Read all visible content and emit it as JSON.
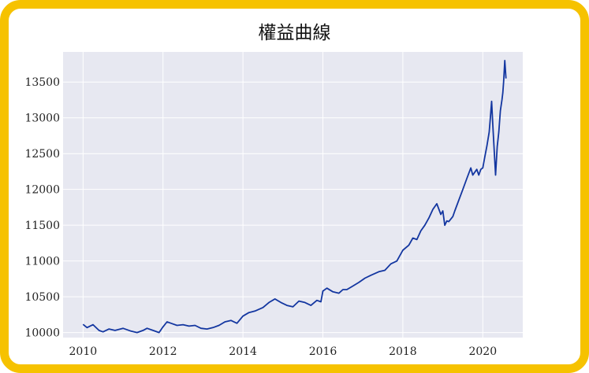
{
  "colors": {
    "frame": "#f6c200",
    "plot_bg": "#e7e8f1",
    "grid": "#ffffff",
    "line": "#1336a0"
  },
  "chart_data": {
    "type": "line",
    "title": "權益曲線",
    "xlabel": "",
    "ylabel": "",
    "xlim": [
      2009.5,
      2021.0
    ],
    "ylim": [
      9930,
      13920
    ],
    "xticks": [
      2010,
      2012,
      2014,
      2016,
      2018,
      2020
    ],
    "yticks": [
      10000,
      10500,
      11000,
      11500,
      12000,
      12500,
      13000,
      13500
    ],
    "grid": true,
    "legend": "none",
    "series": [
      {
        "x": [
          2010.0,
          2010.1,
          2010.25,
          2010.4,
          2010.5,
          2010.65,
          2010.8,
          2011.0,
          2011.2,
          2011.35,
          2011.5,
          2011.6,
          2011.75,
          2011.9,
          2012.0,
          2012.1,
          2012.2,
          2012.35,
          2012.5,
          2012.65,
          2012.8,
          2012.95,
          2013.1,
          2013.25,
          2013.4,
          2013.55,
          2013.7,
          2013.85,
          2014.0,
          2014.15,
          2014.3,
          2014.5,
          2014.65,
          2014.8,
          2014.95,
          2015.1,
          2015.25,
          2015.4,
          2015.55,
          2015.7,
          2015.85,
          2015.95,
          2016.0,
          2016.1,
          2016.25,
          2016.4,
          2016.5,
          2016.6,
          2016.75,
          2016.9,
          2017.05,
          2017.2,
          2017.4,
          2017.55,
          2017.7,
          2017.85,
          2018.0,
          2018.15,
          2018.25,
          2018.35,
          2018.45,
          2018.55,
          2018.65,
          2018.75,
          2018.85,
          2018.95,
          2019.0,
          2019.05,
          2019.1,
          2019.15,
          2019.25,
          2019.3,
          2019.4,
          2019.5,
          2019.6,
          2019.7,
          2019.75,
          2019.85,
          2019.9,
          2019.95,
          2020.0,
          2020.05,
          2020.1,
          2020.13,
          2020.16,
          2020.19,
          2020.22,
          2020.25,
          2020.28,
          2020.32,
          2020.36,
          2020.4,
          2020.44,
          2020.48,
          2020.5,
          2020.52,
          2020.55,
          2020.58
        ],
        "y": [
          10115,
          10070,
          10110,
          10030,
          10010,
          10050,
          10030,
          10060,
          10020,
          10000,
          10030,
          10060,
          10030,
          10000,
          10080,
          10150,
          10130,
          10100,
          10110,
          10090,
          10100,
          10060,
          10050,
          10070,
          10100,
          10150,
          10170,
          10130,
          10230,
          10280,
          10300,
          10350,
          10420,
          10470,
          10420,
          10380,
          10360,
          10440,
          10420,
          10380,
          10450,
          10430,
          10580,
          10620,
          10570,
          10550,
          10600,
          10600,
          10650,
          10700,
          10760,
          10800,
          10850,
          10870,
          10960,
          11000,
          11150,
          11220,
          11320,
          11300,
          11420,
          11500,
          11600,
          11720,
          11800,
          11650,
          11700,
          11500,
          11560,
          11550,
          11620,
          11700,
          11850,
          12000,
          12150,
          12300,
          12200,
          12280,
          12200,
          12280,
          12300,
          12450,
          12600,
          12700,
          12800,
          13000,
          13230,
          12900,
          12600,
          12200,
          12600,
          12800,
          13100,
          13250,
          13350,
          13500,
          13800,
          13550
        ]
      }
    ]
  }
}
